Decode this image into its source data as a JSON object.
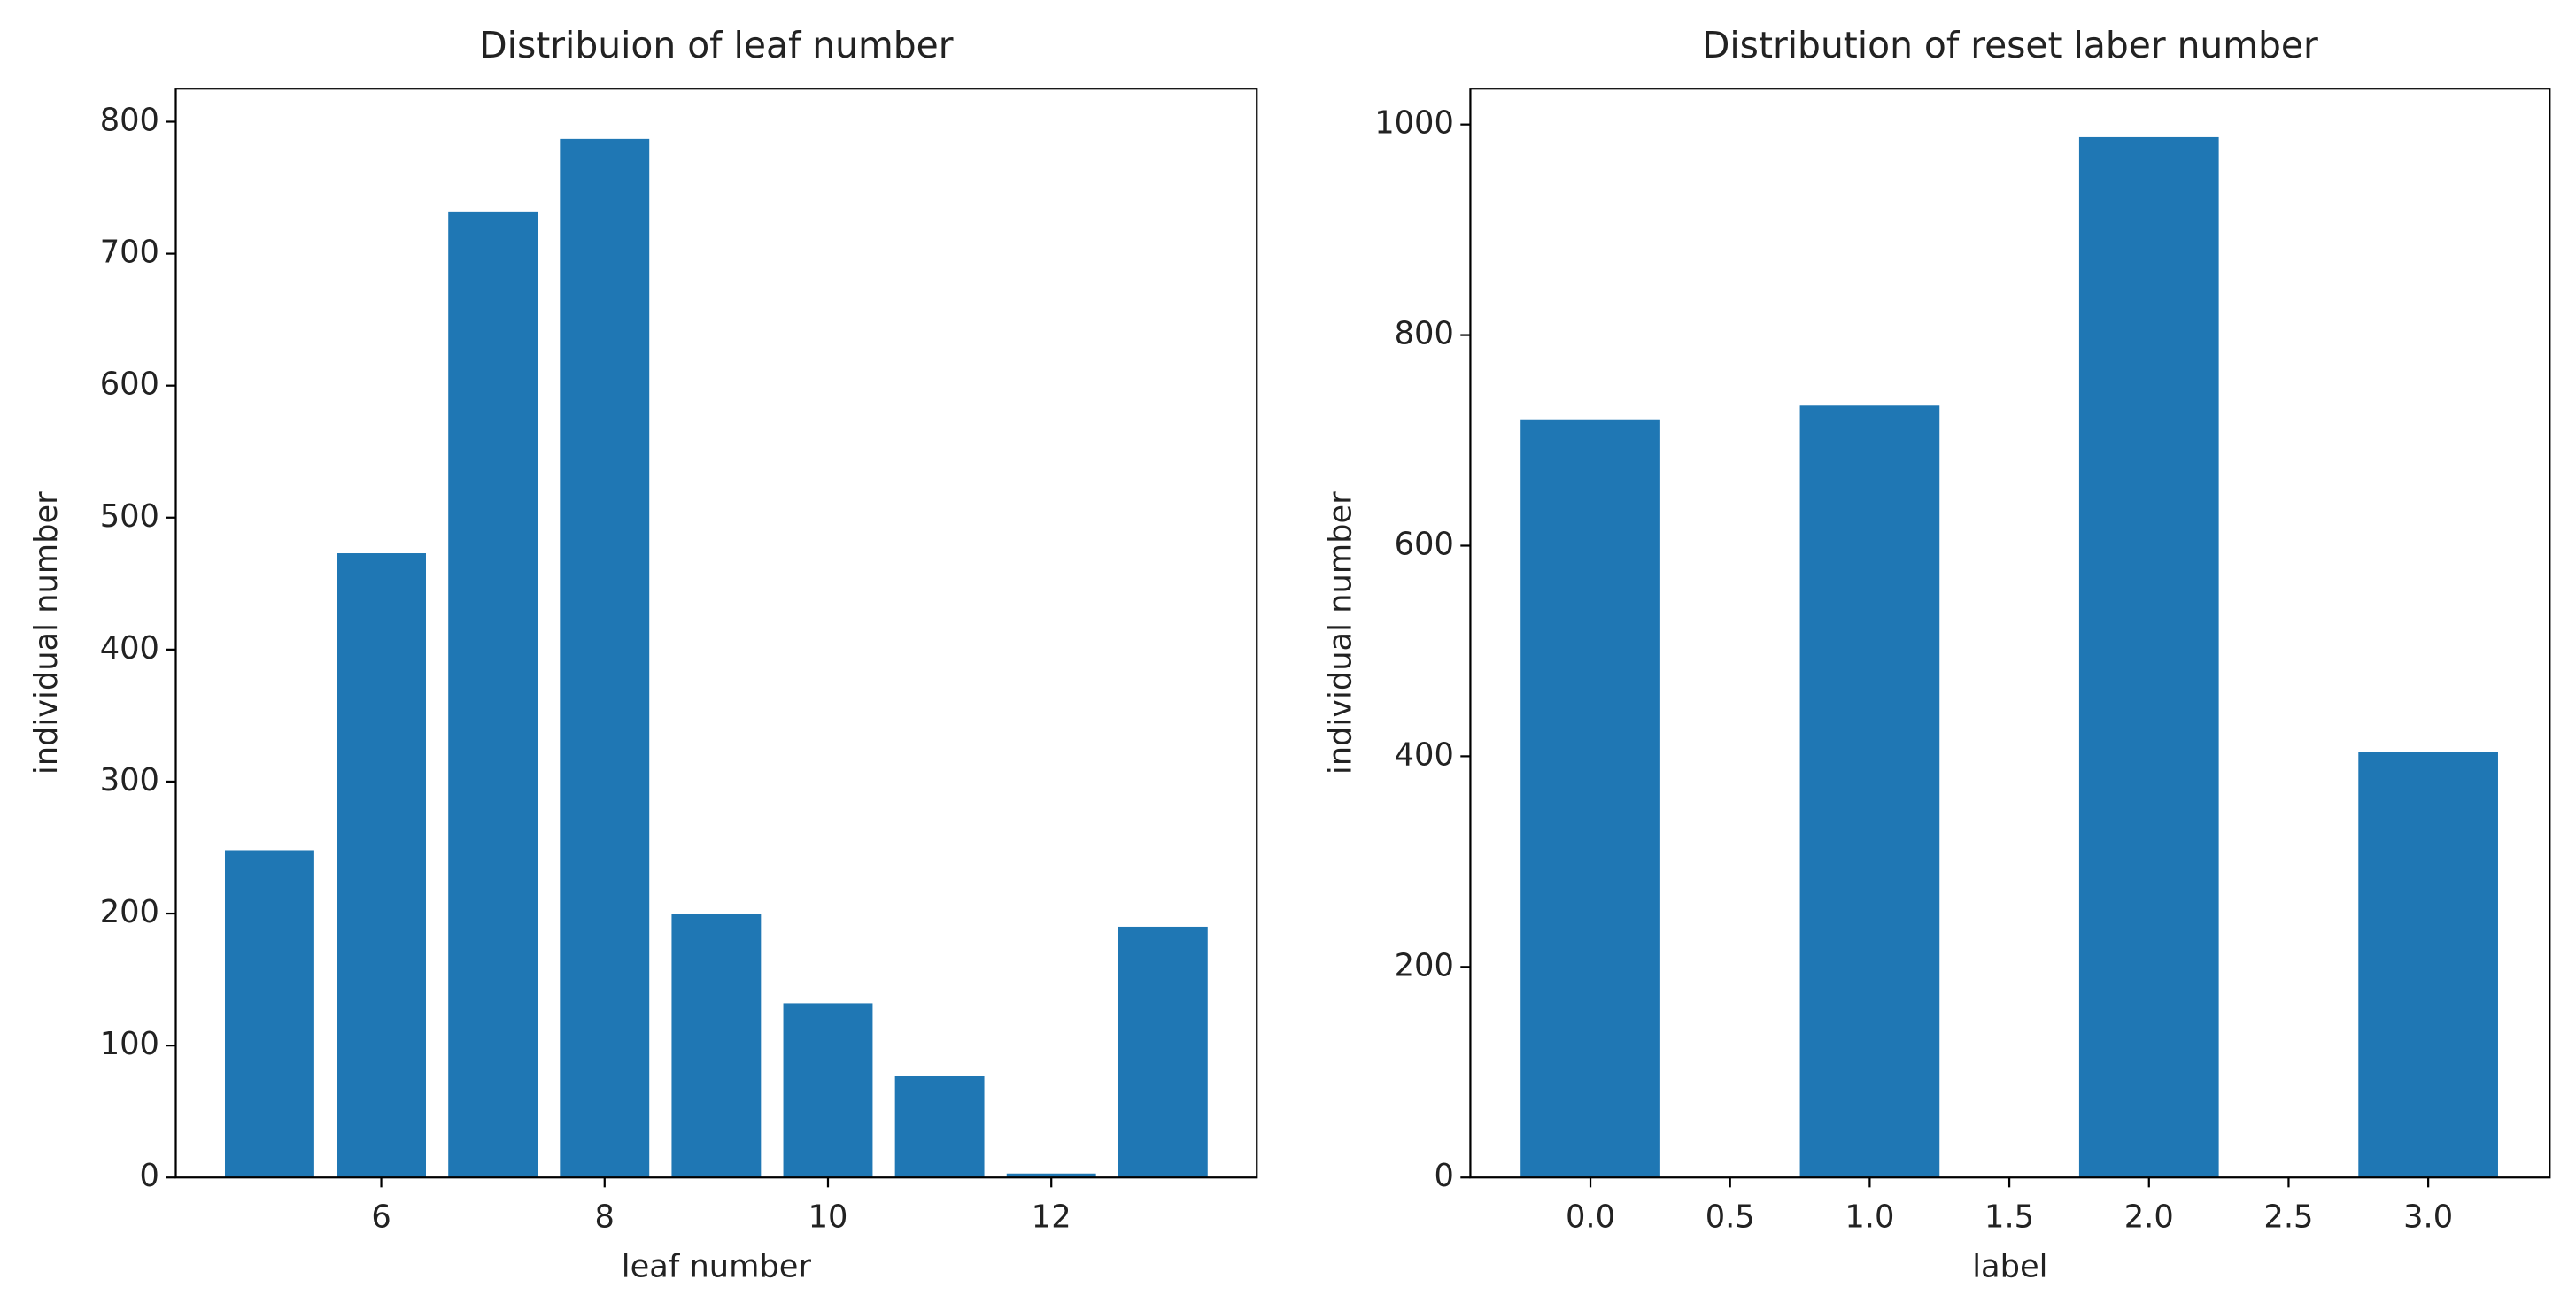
{
  "chart_data": [
    {
      "type": "bar",
      "title": "Distribuion of leaf number",
      "xlabel": "leaf number",
      "ylabel": "individual number",
      "x": [
        5,
        6,
        7,
        8,
        9,
        10,
        11,
        12,
        13
      ],
      "values": [
        248,
        473,
        732,
        787,
        200,
        132,
        77,
        3,
        190
      ],
      "color": "#1f77b4",
      "xlim": [
        4.16,
        13.84
      ],
      "ylim": [
        0,
        825
      ],
      "xticks": [
        6,
        8,
        10,
        12
      ],
      "yticks": [
        0,
        100,
        200,
        300,
        400,
        500,
        600,
        700,
        800
      ]
    },
    {
      "type": "bar",
      "title": "Distribution of reset laber number",
      "xlabel": "label",
      "ylabel": "individual number",
      "x": [
        0,
        1,
        2,
        3
      ],
      "values": [
        720,
        733,
        988,
        404
      ],
      "color": "#1f77b4",
      "xlim": [
        -0.43,
        3.435
      ],
      "ylim": [
        0,
        1034
      ],
      "xticks": [
        {
          "value": 0,
          "label": "0.0"
        },
        {
          "value": 0.5,
          "label": "0.5"
        },
        {
          "value": 1,
          "label": "1.0"
        },
        {
          "value": 1.5,
          "label": "1.5"
        },
        {
          "value": 2,
          "label": "2.0"
        },
        {
          "value": 2.5,
          "label": "2.5"
        },
        {
          "value": 3,
          "label": "3.0"
        }
      ],
      "yticks": [
        0,
        200,
        400,
        600,
        800,
        1000
      ]
    }
  ]
}
